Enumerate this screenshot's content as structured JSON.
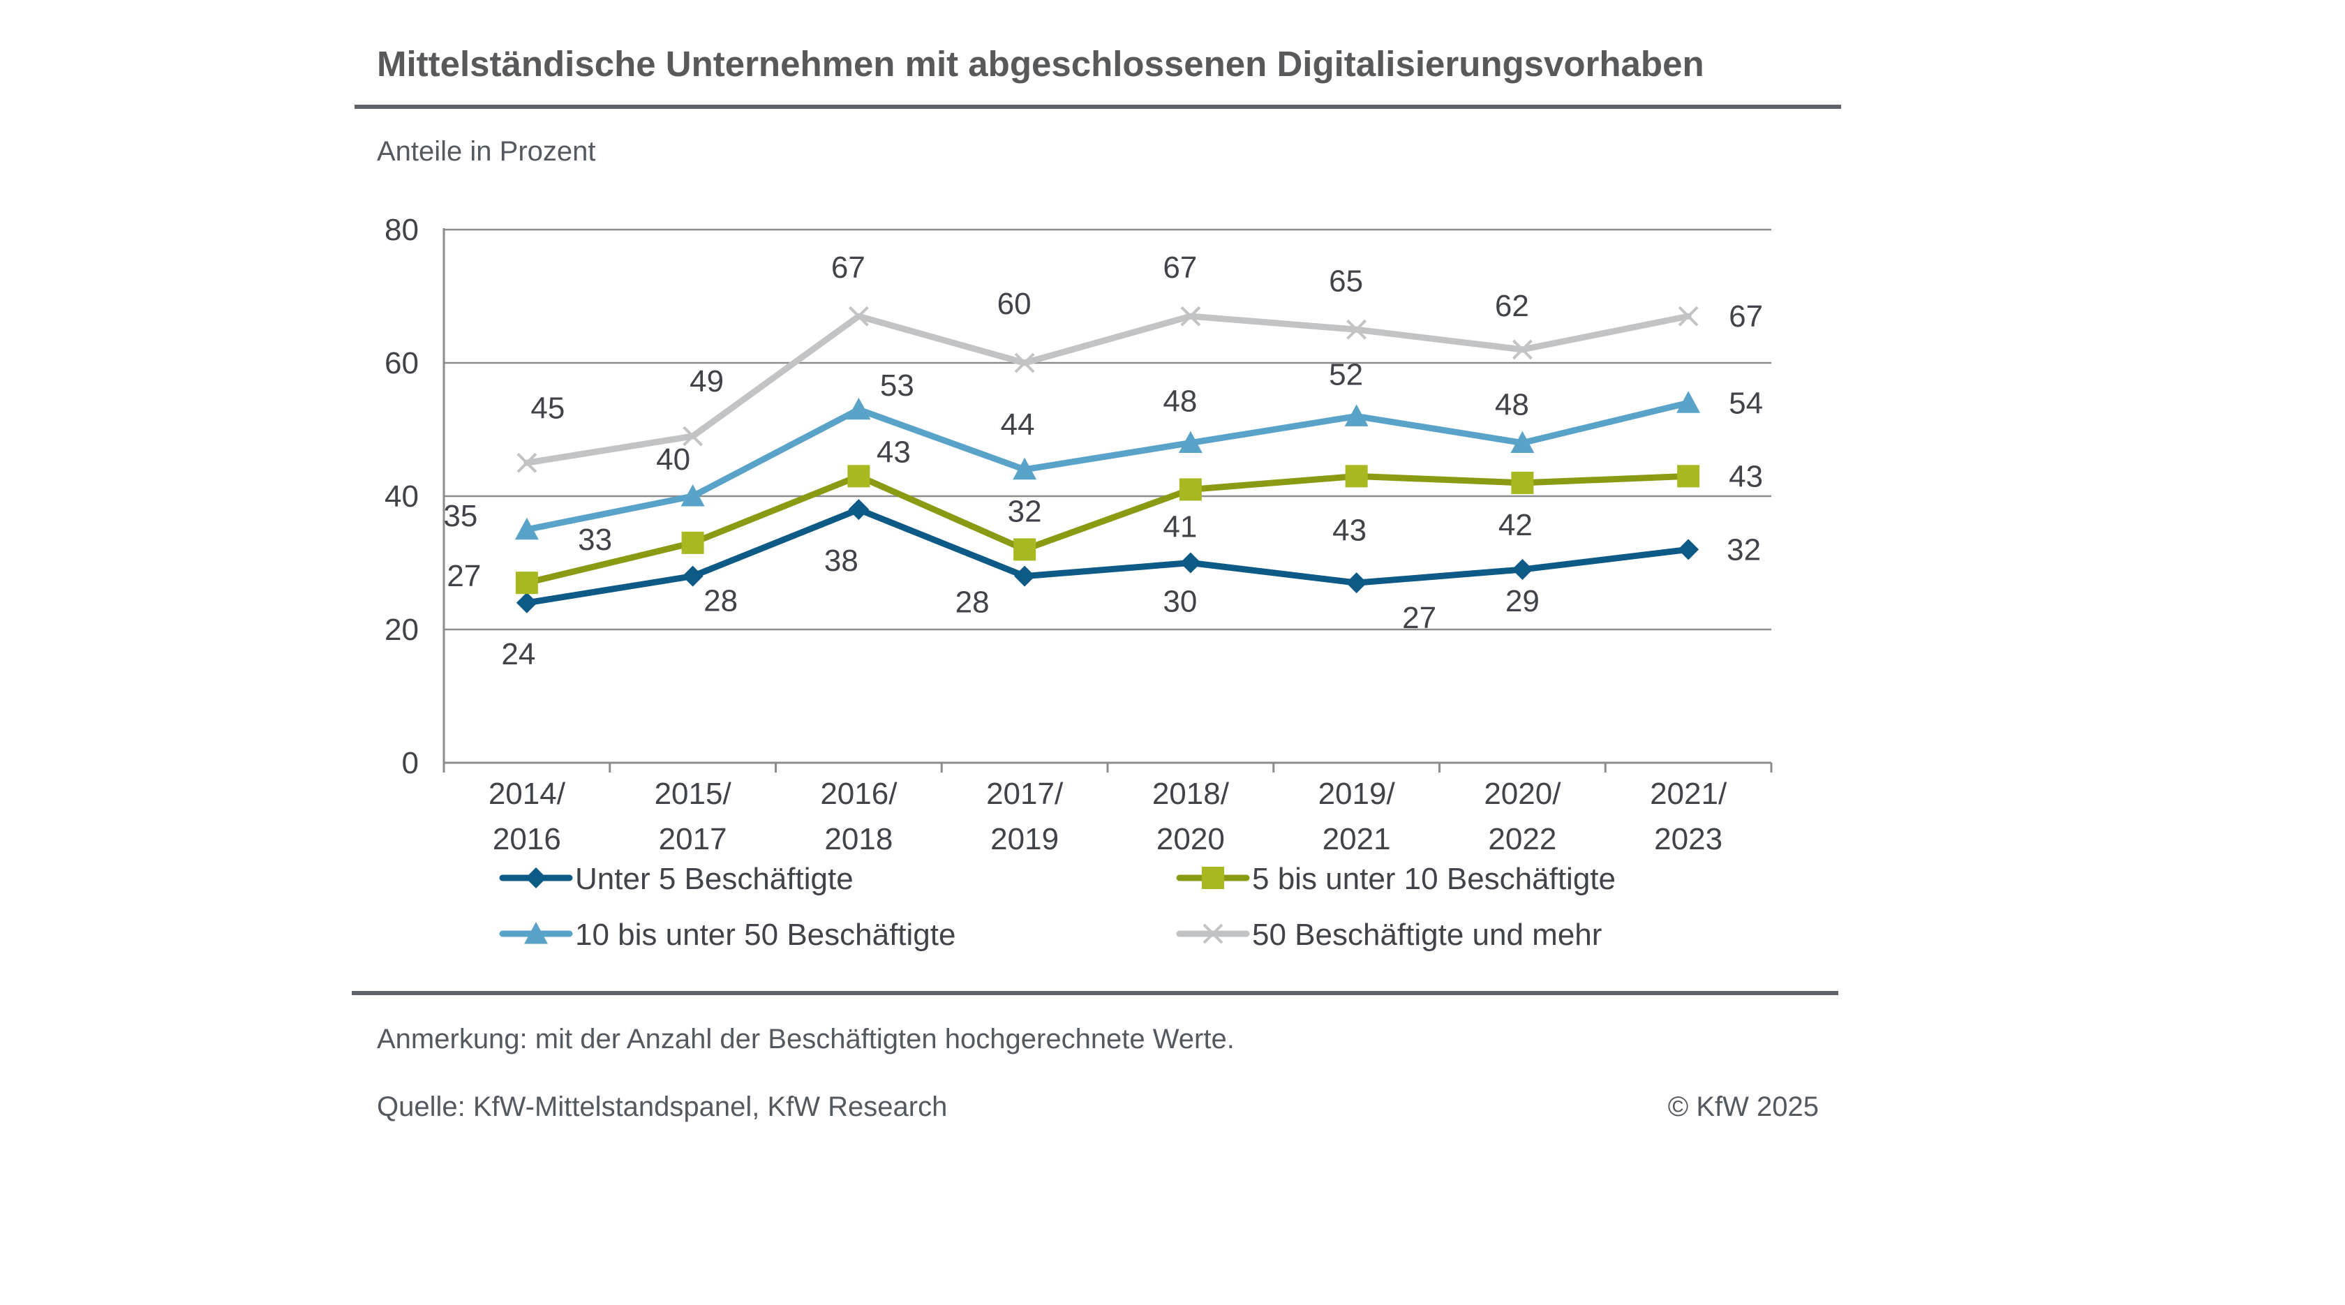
{
  "title": "Mittelständische Unternehmen mit abgeschlossenen Digitalisierungsvorhaben",
  "subtitle": "Anteile in Prozent",
  "note": "Anmerkung: mit der Anzahl der Beschäftigten hochgerechnete Werte.",
  "source": "Quelle: KfW-Mittelstandspanel, KfW Research",
  "copyright": "© KfW 2025",
  "chart_data": {
    "type": "line",
    "ylim": [
      0,
      80
    ],
    "yticks": [
      0,
      20,
      40,
      60,
      80
    ],
    "grid": true,
    "legend_position": "bottom",
    "categories": [
      [
        "2014/",
        "2016"
      ],
      [
        "2015/",
        "2017"
      ],
      [
        "2016/",
        "2018"
      ],
      [
        "2017/",
        "2019"
      ],
      [
        "2018/",
        "2020"
      ],
      [
        "2019/",
        "2021"
      ],
      [
        "2020/",
        "2022"
      ],
      [
        "2021/",
        "2023"
      ]
    ],
    "series": [
      {
        "name": "Unter 5 Beschäftigte",
        "color": "#0e5a87",
        "marker": "diamond",
        "values": [
          24,
          28,
          38,
          28,
          30,
          27,
          29,
          32
        ]
      },
      {
        "name": "5 bis unter 10 Beschäftigte",
        "color": "#8a9a12",
        "markerColor": "#a8b820",
        "marker": "square",
        "values": [
          27,
          33,
          43,
          32,
          41,
          43,
          42,
          43
        ]
      },
      {
        "name": "10 bis unter 50 Beschäftigte",
        "color": "#5aa3c8",
        "marker": "triangle",
        "values": [
          35,
          40,
          53,
          44,
          48,
          52,
          48,
          54
        ]
      },
      {
        "name": "50 Beschäftigte und mehr",
        "color": "#c2c3c5",
        "marker": "x",
        "values": [
          45,
          49,
          67,
          60,
          67,
          65,
          62,
          67
        ]
      }
    ]
  }
}
